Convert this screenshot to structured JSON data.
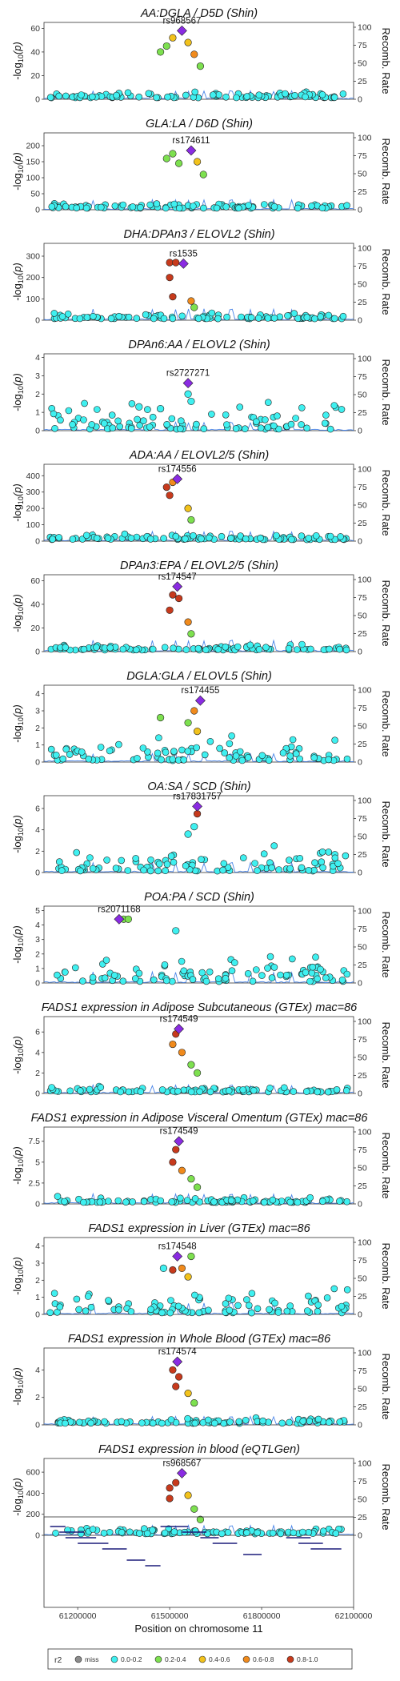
{
  "chart_data": {
    "type": "scatter",
    "xlabel": "Position on chromosome 11",
    "xlim": [
      61090000,
      62100000
    ],
    "xticks": [
      "61200000",
      "61500000",
      "61800000",
      "62100000"
    ],
    "y2label": "Recomb. Rate",
    "y2ticks": [
      "0",
      "25",
      "50",
      "75",
      "100"
    ],
    "ylabel": "-log10(p)",
    "legend": {
      "title": "r2",
      "items": [
        {
          "label": "miss",
          "color": "#8c8c8c"
        },
        {
          "label": "0.0-0.2",
          "color": "#3ff0f0"
        },
        {
          "label": "0.2-0.4",
          "color": "#7de04f"
        },
        {
          "label": "0.4-0.6",
          "color": "#f2c21b"
        },
        {
          "label": "0.6-0.8",
          "color": "#f08a1c"
        },
        {
          "label": "0.8-1.0",
          "color": "#c73a1c"
        }
      ]
    },
    "panels": [
      {
        "title": "AA:DGLA / D5D (Shin)",
        "lead_snp": "rs968567",
        "lead_x": 61540000,
        "lead_y": 58,
        "ylim": [
          0,
          65
        ],
        "yticks": [
          "0",
          "20",
          "40",
          "60"
        ],
        "peak": [
          {
            "x": 61470000,
            "y": 40,
            "r": "0.2-0.4"
          },
          {
            "x": 61490000,
            "y": 45,
            "r": "0.2-0.4"
          },
          {
            "x": 61510000,
            "y": 52,
            "r": "0.4-0.6"
          },
          {
            "x": 61560000,
            "y": 48,
            "r": "0.4-0.6"
          },
          {
            "x": 61580000,
            "y": 38,
            "r": "0.6-0.8"
          },
          {
            "x": 61600000,
            "y": 28,
            "r": "0.2-0.4"
          }
        ]
      },
      {
        "title": "GLA:LA / D6D (Shin)",
        "lead_snp": "rs174611",
        "lead_x": 61570000,
        "lead_y": 185,
        "ylim": [
          0,
          240
        ],
        "yticks": [
          "0",
          "50",
          "100",
          "150",
          "200"
        ],
        "peak": [
          {
            "x": 61490000,
            "y": 160,
            "r": "0.2-0.4"
          },
          {
            "x": 61510000,
            "y": 175,
            "r": "0.2-0.4"
          },
          {
            "x": 61530000,
            "y": 145,
            "r": "0.2-0.4"
          },
          {
            "x": 61590000,
            "y": 150,
            "r": "0.4-0.6"
          },
          {
            "x": 61610000,
            "y": 110,
            "r": "0.2-0.4"
          }
        ]
      },
      {
        "title": "DHA:DPAn3 / ELOVL2 (Shin)",
        "lead_snp": "rs1535",
        "lead_x": 61545000,
        "lead_y": 265,
        "ylim": [
          0,
          360
        ],
        "yticks": [
          "0",
          "100",
          "200",
          "300"
        ],
        "peak": [
          {
            "x": 61500000,
            "y": 270,
            "r": "0.8-1.0"
          },
          {
            "x": 61520000,
            "y": 270,
            "r": "0.8-1.0"
          },
          {
            "x": 61500000,
            "y": 200,
            "r": "0.8-1.0"
          },
          {
            "x": 61510000,
            "y": 110,
            "r": "0.8-1.0"
          },
          {
            "x": 61570000,
            "y": 90,
            "r": "0.6-0.8"
          },
          {
            "x": 61580000,
            "y": 60,
            "r": "0.2-0.4"
          }
        ]
      },
      {
        "title": "DPAn6:AA / ELOVL2 (Shin)",
        "lead_snp": "rs2727271",
        "lead_x": 61560000,
        "lead_y": 2.6,
        "ylim": [
          0,
          4.2
        ],
        "yticks": [
          "0",
          "1",
          "2",
          "3",
          "4"
        ],
        "peak": [
          {
            "x": 61560000,
            "y": 2.0,
            "r": "0.0-0.2"
          },
          {
            "x": 61570000,
            "y": 1.6,
            "r": "0.0-0.2"
          },
          {
            "x": 61400000,
            "y": 1.3,
            "r": "0.0-0.2"
          },
          {
            "x": 61470000,
            "y": 1.2,
            "r": "0.0-0.2"
          }
        ]
      },
      {
        "title": "ADA:AA / ELOVL2/5 (Shin)",
        "lead_snp": "rs174556",
        "lead_x": 61525000,
        "lead_y": 380,
        "ylim": [
          0,
          470
        ],
        "yticks": [
          "0",
          "100",
          "200",
          "300",
          "400"
        ],
        "peak": [
          {
            "x": 61490000,
            "y": 330,
            "r": "0.8-1.0"
          },
          {
            "x": 61510000,
            "y": 360,
            "r": "0.6-0.8"
          },
          {
            "x": 61500000,
            "y": 280,
            "r": "0.8-1.0"
          },
          {
            "x": 61560000,
            "y": 200,
            "r": "0.4-0.6"
          },
          {
            "x": 61570000,
            "y": 130,
            "r": "0.2-0.4"
          }
        ]
      },
      {
        "title": "DPAn3:EPA / ELOVL2/5 (Shin)",
        "lead_snp": "rs174547",
        "lead_x": 61525000,
        "lead_y": 55,
        "ylim": [
          0,
          65
        ],
        "yticks": [
          "0",
          "20",
          "40",
          "60"
        ],
        "peak": [
          {
            "x": 61510000,
            "y": 48,
            "r": "0.8-1.0"
          },
          {
            "x": 61530000,
            "y": 45,
            "r": "0.8-1.0"
          },
          {
            "x": 61500000,
            "y": 35,
            "r": "0.8-1.0"
          },
          {
            "x": 61560000,
            "y": 25,
            "r": "0.6-0.8"
          },
          {
            "x": 61570000,
            "y": 15,
            "r": "0.2-0.4"
          }
        ]
      },
      {
        "title": "DGLA:GLA / ELOVL5 (Shin)",
        "lead_snp": "rs174455",
        "lead_x": 61600000,
        "lead_y": 3.6,
        "ylim": [
          0,
          4.5
        ],
        "yticks": [
          "0",
          "1",
          "2",
          "3",
          "4"
        ],
        "peak": [
          {
            "x": 61580000,
            "y": 3.0,
            "r": "0.6-0.8"
          },
          {
            "x": 61560000,
            "y": 2.3,
            "r": "0.2-0.4"
          },
          {
            "x": 61470000,
            "y": 2.6,
            "r": "0.2-0.4"
          },
          {
            "x": 61590000,
            "y": 1.8,
            "r": "0.4-0.6"
          }
        ]
      },
      {
        "title": "OA:SA / SCD (Shin)",
        "lead_snp": "rs17831757",
        "lead_x": 61590000,
        "lead_y": 6.2,
        "ylim": [
          0,
          7.2
        ],
        "yticks": [
          "0",
          "2",
          "4",
          "6"
        ],
        "peak": [
          {
            "x": 61590000,
            "y": 5.5,
            "r": "0.8-1.0"
          },
          {
            "x": 61580000,
            "y": 4.3,
            "r": "0.0-0.2"
          },
          {
            "x": 61560000,
            "y": 3.6,
            "r": "0.0-0.2"
          }
        ]
      },
      {
        "title": "POA:PA / SCD (Shin)",
        "lead_snp": "rs2071168",
        "lead_x": 61335000,
        "lead_y": 4.4,
        "ylim": [
          0,
          5.3
        ],
        "yticks": [
          "0",
          "1",
          "2",
          "3",
          "4",
          "5"
        ],
        "peak": [
          {
            "x": 61350000,
            "y": 4.4,
            "r": "0.2-0.4"
          },
          {
            "x": 61365000,
            "y": 4.4,
            "r": "0.2-0.4"
          },
          {
            "x": 61520000,
            "y": 3.6,
            "r": "0.0-0.2"
          }
        ]
      },
      {
        "title": "FADS1 expression in Adipose Subcutaneous (GTEx) mac=86",
        "lead_snp": "rs174549",
        "lead_x": 61530000,
        "lead_y": 6.3,
        "ylim": [
          0,
          7.5
        ],
        "yticks": [
          "0",
          "2",
          "4",
          "6"
        ],
        "peak": [
          {
            "x": 61520000,
            "y": 5.8,
            "r": "0.8-1.0"
          },
          {
            "x": 61510000,
            "y": 4.8,
            "r": "0.6-0.8"
          },
          {
            "x": 61540000,
            "y": 4.0,
            "r": "0.6-0.8"
          },
          {
            "x": 61570000,
            "y": 2.8,
            "r": "0.2-0.4"
          },
          {
            "x": 61590000,
            "y": 2.0,
            "r": "0.2-0.4"
          }
        ]
      },
      {
        "title": "FADS1 expression in Adipose Visceral Omentum (GTEx) mac=86",
        "lead_snp": "rs174549",
        "lead_x": 61530000,
        "lead_y": 7.5,
        "ylim": [
          0,
          9.2
        ],
        "yticks": [
          "0",
          "2.5",
          "5",
          "7.5"
        ],
        "peak": [
          {
            "x": 61520000,
            "y": 6.5,
            "r": "0.8-1.0"
          },
          {
            "x": 61510000,
            "y": 5.0,
            "r": "0.8-1.0"
          },
          {
            "x": 61540000,
            "y": 4.0,
            "r": "0.6-0.8"
          },
          {
            "x": 61570000,
            "y": 3.0,
            "r": "0.2-0.4"
          },
          {
            "x": 61590000,
            "y": 2.0,
            "r": "0.2-0.4"
          }
        ]
      },
      {
        "title": "FADS1 expression in Liver (GTEx) mac=86",
        "lead_snp": "rs174548",
        "lead_x": 61525000,
        "lead_y": 3.4,
        "ylim": [
          0,
          4.5
        ],
        "yticks": [
          "0",
          "1",
          "2",
          "3",
          "4"
        ],
        "peak": [
          {
            "x": 61510000,
            "y": 2.6,
            "r": "0.8-1.0"
          },
          {
            "x": 61540000,
            "y": 2.7,
            "r": "0.6-0.8"
          },
          {
            "x": 61560000,
            "y": 2.2,
            "r": "0.4-0.6"
          },
          {
            "x": 61570000,
            "y": 3.4,
            "r": "0.2-0.4"
          },
          {
            "x": 61480000,
            "y": 2.7,
            "r": "0.0-0.2"
          }
        ]
      },
      {
        "title": "FADS1 expression in Whole Blood (GTEx) mac=86",
        "lead_snp": "rs174574",
        "lead_x": 61525000,
        "lead_y": 4.6,
        "ylim": [
          0,
          5.6
        ],
        "yticks": [
          "0",
          "2",
          "4"
        ],
        "peak": [
          {
            "x": 61510000,
            "y": 4.0,
            "r": "0.8-1.0"
          },
          {
            "x": 61530000,
            "y": 3.5,
            "r": "0.8-1.0"
          },
          {
            "x": 61520000,
            "y": 2.8,
            "r": "0.8-1.0"
          },
          {
            "x": 61560000,
            "y": 2.3,
            "r": "0.4-0.6"
          },
          {
            "x": 61580000,
            "y": 1.6,
            "r": "0.2-0.4"
          }
        ]
      },
      {
        "title": "FADS1 expression in blood (eQTLGen)",
        "lead_snp": "rs968567",
        "lead_x": 61540000,
        "lead_y": 590,
        "ylim": [
          0,
          730
        ],
        "yticks": [
          "0",
          "200",
          "400",
          "600"
        ],
        "peak": [
          {
            "x": 61500000,
            "y": 450,
            "r": "0.8-1.0"
          },
          {
            "x": 61520000,
            "y": 500,
            "r": "0.8-1.0"
          },
          {
            "x": 61500000,
            "y": 350,
            "r": "0.8-1.0"
          },
          {
            "x": 61560000,
            "y": 380,
            "r": "0.4-0.6"
          },
          {
            "x": 61580000,
            "y": 250,
            "r": "0.2-0.4"
          },
          {
            "x": 61600000,
            "y": 150,
            "r": "0.2-0.4"
          }
        ]
      }
    ]
  }
}
